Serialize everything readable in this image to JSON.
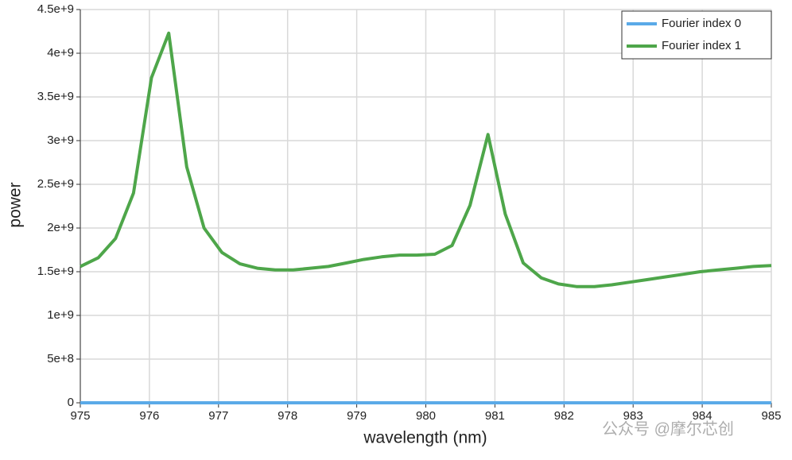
{
  "chart_data": {
    "type": "line",
    "x_label": "wavelength (nm)",
    "y_label": "power",
    "x": [
      975.0,
      975.26,
      975.51,
      975.77,
      976.03,
      976.28,
      976.54,
      976.79,
      977.05,
      977.31,
      977.56,
      977.82,
      978.08,
      978.33,
      978.59,
      978.85,
      979.1,
      979.36,
      979.62,
      979.87,
      980.13,
      980.38,
      980.64,
      980.9,
      981.15,
      981.41,
      981.67,
      981.92,
      982.18,
      982.44,
      982.69,
      982.95,
      983.21,
      983.46,
      983.72,
      983.97,
      984.23,
      984.49,
      984.74,
      985.0
    ],
    "series": [
      {
        "name": "Fourier index 0",
        "color": "#5aaae8",
        "values": [
          0,
          0,
          0,
          0,
          0,
          0,
          0,
          0,
          0,
          0,
          0,
          0,
          0,
          0,
          0,
          0,
          0,
          0,
          0,
          0,
          0,
          0,
          0,
          0,
          0,
          0,
          0,
          0,
          0,
          0,
          0,
          0,
          0,
          0,
          0,
          0,
          0,
          0,
          0,
          0
        ]
      },
      {
        "name": "Fourier index 1",
        "color": "#4ea64a",
        "values": [
          1560000000,
          1660000000,
          1880000000,
          2400000000,
          3720000000,
          4230000000,
          2700000000,
          2000000000,
          1720000000,
          1590000000,
          1540000000,
          1520000000,
          1520000000,
          1540000000,
          1560000000,
          1600000000,
          1640000000,
          1670000000,
          1690000000,
          1690000000,
          1700000000,
          1800000000,
          2260000000,
          3070000000,
          2160000000,
          1600000000,
          1430000000,
          1360000000,
          1330000000,
          1330000000,
          1350000000,
          1380000000,
          1410000000,
          1440000000,
          1470000000,
          1500000000,
          1520000000,
          1540000000,
          1560000000,
          1570000000
        ]
      }
    ],
    "xlim": [
      975,
      985
    ],
    "xticks": [
      975,
      976,
      977,
      978,
      979,
      980,
      981,
      982,
      983,
      984,
      985
    ],
    "ylim": [
      0,
      4500000000
    ],
    "yticks": [
      0,
      {
        "value": 500000000,
        "label": "5e+8"
      },
      {
        "value": 1000000000,
        "label": "1e+9"
      },
      {
        "value": 1500000000,
        "label": "1.5e+9"
      },
      {
        "value": 2000000000,
        "label": "2e+9"
      },
      {
        "value": 2500000000,
        "label": "2.5e+9"
      },
      {
        "value": 3000000000,
        "label": "3e+9"
      },
      {
        "value": 3500000000,
        "label": "3.5e+9"
      },
      {
        "value": 4000000000,
        "label": "4e+9"
      },
      {
        "value": 4500000000,
        "label": "4.5e+9"
      }
    ],
    "grid": true,
    "legend": "top-right",
    "watermark": "公众号 @摩尔芯创"
  }
}
